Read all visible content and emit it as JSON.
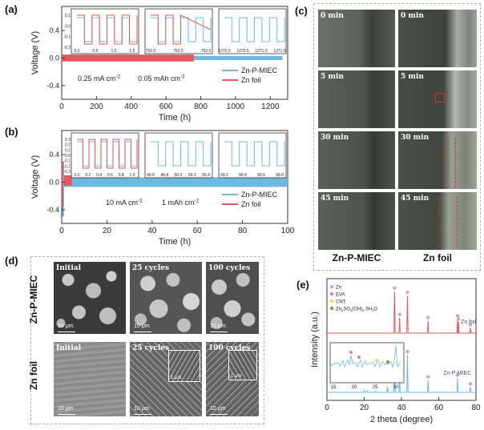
{
  "colors": {
    "zn_p_miec": "#6cb9e4",
    "zn_foil": "#e5575a",
    "axis": "#333333",
    "zinc_marker": "#c9a2e6",
    "eva_marker": "#f07bb4",
    "cnt_marker": "#f0d36a",
    "zhs_marker": "#a08a2a"
  },
  "panel_a": {
    "label": "(a)",
    "chart_data": {
      "type": "line",
      "xlabel": "Time (h)",
      "ylabel": "Voltage (V)",
      "xlim": [
        0,
        1300
      ],
      "ylim": [
        -0.6,
        0.75
      ],
      "xticks": [
        "0",
        "200",
        "400",
        "600",
        "800",
        "1000",
        "1200"
      ],
      "yticks": [
        "-0.4",
        "0.0",
        "0.4"
      ],
      "series": [
        {
          "name": "Zn-P-MIEC",
          "x_range": [
            0,
            1270
          ],
          "voltage_band": [
            -0.03,
            0.03
          ]
        },
        {
          "name": "Zn foil",
          "x_range": [
            0,
            760
          ],
          "voltage_band": [
            -0.05,
            0.05
          ]
        }
      ],
      "annotation_current": "0.25 mA cm",
      "annotation_current_sup": "-2",
      "annotation_capacity": "0.05 mAh cm",
      "annotation_capacity_sup": "-2",
      "insets": [
        {
          "xticks": [
            "0.0",
            "0.5",
            "1.0",
            "1.5"
          ],
          "yticks": [
            "0.1",
            "0.0",
            "-0.1",
            "-0.2"
          ],
          "curves": [
            "Zn-P-MIEC",
            "Zn foil"
          ]
        },
        {
          "xticks": [
            "752.0",
            "752.5",
            "753.0"
          ],
          "yticks": [
            "0.1",
            "0.0",
            "-0.1",
            "-0.2"
          ],
          "curves": [
            "Zn-P-MIEC",
            "Zn foil"
          ]
        },
        {
          "xticks": [
            "1270.0",
            "1270.5",
            "1271.0",
            "1271.5"
          ],
          "yticks": [
            "0.1",
            "0.0",
            "-0.1",
            "-0.2"
          ],
          "curves": [
            "Zn-P-MIEC"
          ]
        }
      ]
    }
  },
  "panel_b": {
    "label": "(b)",
    "chart_data": {
      "type": "line",
      "xlabel": "Time (h)",
      "ylabel": "Voltage (V)",
      "xlim": [
        0,
        100
      ],
      "ylim": [
        -0.6,
        0.75
      ],
      "xticks": [
        "0",
        "20",
        "40",
        "60",
        "80",
        "100"
      ],
      "yticks": [
        "-0.4",
        "0.0",
        "0.4"
      ],
      "series": [
        {
          "name": "Zn-P-MIEC",
          "x_range": [
            0,
            100
          ],
          "voltage_band": [
            -0.07,
            0.07
          ],
          "initial_spike": [
            -0.5,
            0.3
          ]
        },
        {
          "name": "Zn foil",
          "x_range": [
            0,
            4.5
          ],
          "voltage_band": [
            -0.05,
            0.1
          ],
          "initial_spike": [
            -0.35,
            0.3
          ]
        }
      ],
      "annotation_current": "10 mA cm",
      "annotation_current_sup": "-2",
      "annotation_capacity": "1 mAh cm",
      "annotation_capacity_sup": "-2",
      "insets": [
        {
          "xticks": [
            "0.0",
            "0.2",
            "0.4",
            "0.6",
            "0.8",
            "1.0"
          ],
          "yticks": [
            "0.3",
            "0.2",
            "0.1",
            "0.0",
            "-0.1",
            "-0.2",
            "-0.3"
          ],
          "curves": [
            "Zn-P-MIEC",
            "Zn foil"
          ]
        },
        {
          "xticks": [
            "49.6",
            "49.8",
            "50.0",
            "50.2",
            "50.4"
          ],
          "yticks": [
            "0.1",
            "0.0",
            "-0.1",
            "-0.2"
          ],
          "curves": [
            "Zn-P-MIEC"
          ]
        },
        {
          "xticks": [
            "99.2",
            "99.4",
            "99.6",
            "99.8"
          ],
          "yticks": [
            "0.1",
            "0.0",
            "-0.1",
            "-0.2"
          ],
          "curves": [
            "Zn-P-MIEC"
          ]
        }
      ]
    }
  },
  "panel_c": {
    "label": "(c)",
    "times": [
      "0 min",
      "5 min",
      "30 min",
      "45 min"
    ],
    "col_labels": [
      "Zn-P-MIEC",
      "Zn foil"
    ]
  },
  "panel_d": {
    "label": "(d)",
    "row_labels": [
      "Zn-P-MIEC",
      "Zn foil"
    ],
    "col_titles": [
      "Initial",
      "25 cycles",
      "100 cycles"
    ],
    "scale": "10 μm",
    "inset_scale": "1 μm"
  },
  "panel_e": {
    "label": "(e)",
    "chart_data": {
      "type": "line",
      "xlabel": "2 theta (degree)",
      "ylabel": "Intensity (a.u.)",
      "xlim": [
        0,
        80
      ],
      "xticks": [
        "0",
        "20",
        "40",
        "60",
        "80"
      ],
      "legend": [
        "Zn",
        "EVA",
        "CNT",
        "Zn4SO4(OH)6·5H2O"
      ],
      "legend_parts": {
        "zhs": [
          "Zn",
          "4",
          "SO",
          "4",
          "(OH)",
          "6",
          "·5H",
          "2",
          "O"
        ]
      },
      "series": [
        {
          "name": "Zn foil",
          "peaks": [
            [
              36.3,
              0.95
            ],
            [
              39.0,
              0.35
            ],
            [
              43.2,
              0.85
            ],
            [
              54.3,
              0.28
            ],
            [
              70.1,
              0.32
            ],
            [
              70.6,
              0.25
            ],
            [
              77.0,
              0.12
            ]
          ]
        },
        {
          "name": "Zn-P-MIEC",
          "peaks": [
            [
              20.0,
              0.05
            ],
            [
              21.5,
              0.04
            ],
            [
              26.0,
              0.03
            ],
            [
              32.5,
              0.12
            ],
            [
              36.3,
              0.95
            ],
            [
              39.0,
              0.35
            ],
            [
              43.2,
              0.85
            ],
            [
              54.3,
              0.28
            ],
            [
              70.1,
              0.32
            ],
            [
              77.0,
              0.12
            ]
          ]
        }
      ],
      "inset_xticks": [
        "15",
        "20",
        "25",
        "30"
      ]
    }
  }
}
